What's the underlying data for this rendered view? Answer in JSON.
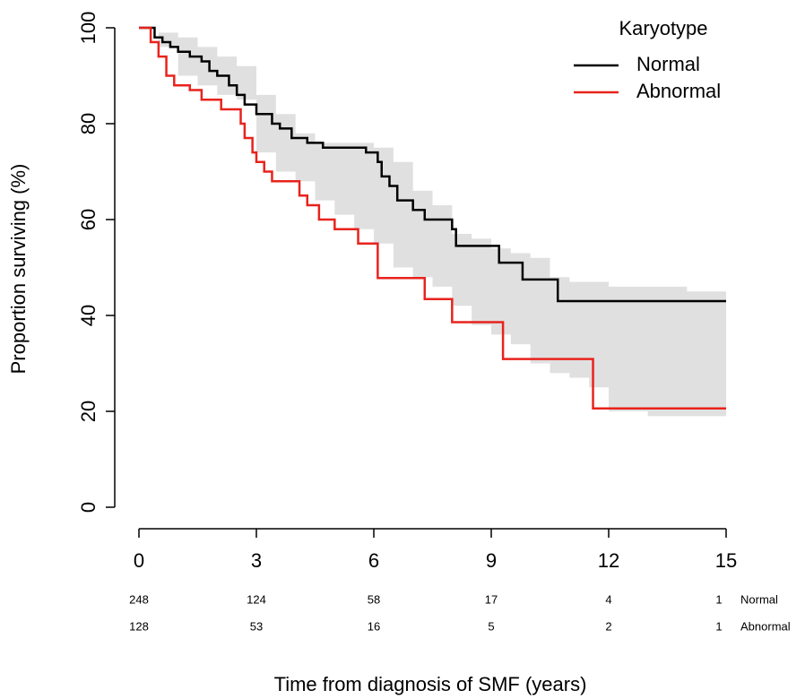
{
  "chart_data": {
    "type": "survival",
    "x_label": "Time from diagnosis of SMF (years)",
    "y_label": "Proportion surviving (%)",
    "xlim": [
      0,
      15
    ],
    "xticks": [
      0,
      3,
      6,
      9,
      12,
      15
    ],
    "ylim": [
      0,
      100
    ],
    "yticks": [
      0,
      20,
      40,
      60,
      80,
      100
    ],
    "legend_title": "Karyotype",
    "legend_position": "top-right",
    "series": [
      {
        "name": "Normal",
        "color": "#000000",
        "x": [
          0,
          0.4,
          0.6,
          0.8,
          1.0,
          1.3,
          1.6,
          1.8,
          2.0,
          2.3,
          2.5,
          2.7,
          3.0,
          3.4,
          3.6,
          3.9,
          4.3,
          4.7,
          5.8,
          6.1,
          6.2,
          6.4,
          6.6,
          7.0,
          7.3,
          8.0,
          8.1,
          9.2,
          9.8,
          10.7,
          15
        ],
        "values": [
          100,
          98,
          97,
          96,
          95,
          94,
          93,
          91,
          90,
          88,
          86,
          84,
          82,
          80,
          79,
          77,
          76,
          75,
          74,
          72,
          69,
          67,
          64,
          62,
          60,
          58,
          54.5,
          51,
          47.5,
          43,
          43
        ]
      },
      {
        "name": "Abnormal",
        "color": "#e8231d",
        "x": [
          0,
          0.3,
          0.5,
          0.7,
          0.9,
          1.3,
          1.6,
          2.1,
          2.6,
          2.7,
          2.9,
          3.0,
          3.2,
          3.4,
          4.1,
          4.3,
          4.6,
          5.0,
          5.6,
          6.1,
          7.3,
          8.0,
          9.3,
          11.6,
          15
        ],
        "values": [
          100,
          97,
          94,
          90,
          88,
          87,
          85,
          83,
          80,
          77,
          74,
          72,
          70,
          68,
          65,
          63,
          60,
          58,
          55,
          47.8,
          43.4,
          38.6,
          30.9,
          20.6,
          20.6
        ]
      }
    ],
    "band": {
      "color": "#e0e0e0",
      "x": [
        0,
        0.5,
        1,
        1.5,
        2,
        2.5,
        3,
        3.5,
        4,
        4.5,
        5,
        5.5,
        6,
        6.5,
        7,
        7.5,
        8,
        8.5,
        9,
        9.5,
        10,
        10.5,
        11,
        11.5,
        12,
        13,
        14,
        14.9
      ],
      "upper": [
        100,
        99,
        98,
        96,
        94,
        92,
        86,
        82,
        78,
        76,
        76,
        76,
        75,
        72,
        66,
        63,
        57,
        56,
        54,
        53,
        52,
        48,
        47,
        47,
        46,
        46,
        45,
        45
      ],
      "lower": [
        100,
        96,
        90,
        88,
        86,
        85,
        74,
        70,
        68,
        64,
        61,
        58,
        55,
        50,
        48,
        46,
        42,
        38,
        36,
        34,
        30,
        28,
        27,
        25,
        20,
        19,
        19,
        19
      ]
    },
    "risk_table": [
      {
        "name": "Normal",
        "values": [
          248,
          124,
          58,
          17,
          4,
          1
        ]
      },
      {
        "name": "Abnormal",
        "values": [
          128,
          53,
          16,
          5,
          2,
          1
        ]
      }
    ]
  }
}
